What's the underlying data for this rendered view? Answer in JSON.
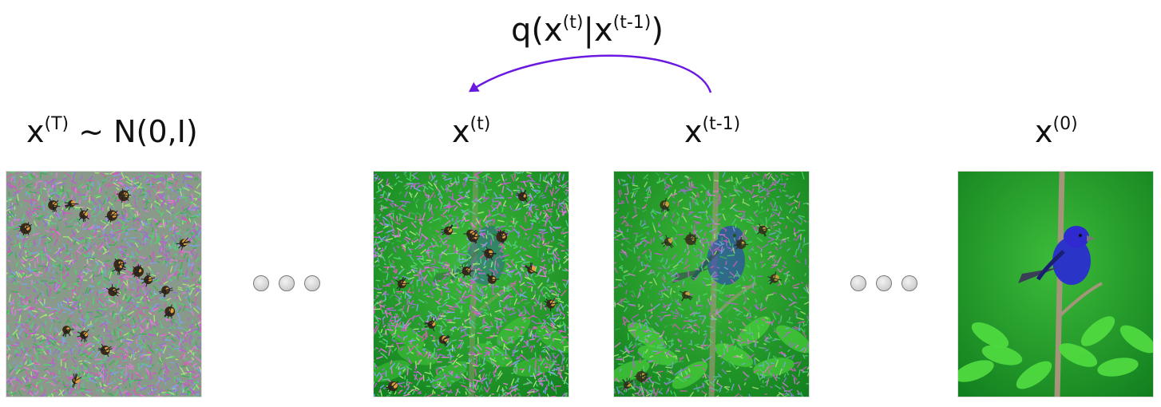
{
  "process_label": {
    "base": "q(x",
    "sup1": "(t)",
    "mid": "|x",
    "sup2": "(t-1)",
    "end": ")"
  },
  "stages": [
    {
      "base": "x",
      "sup": "(T)",
      "suffix": " ~ N(0,I)"
    },
    {
      "base": "x",
      "sup": "(t)",
      "suffix": ""
    },
    {
      "base": "x",
      "sup": "(t-1)",
      "suffix": ""
    },
    {
      "base": "x",
      "sup": "(0)",
      "suffix": ""
    }
  ],
  "images": [
    {
      "name": "pure-noise-image",
      "noise_level": 1.0
    },
    {
      "name": "noisy-bird-image-t",
      "noise_level": 0.8
    },
    {
      "name": "noisy-bird-image-t-minus-1",
      "noise_level": 0.5
    },
    {
      "name": "clean-bird-image",
      "noise_level": 0.0
    }
  ],
  "colors": {
    "arrow": "#6a1ae0",
    "text": "#111111",
    "background_green": "#1f9a2a",
    "bird_blue": "#2a35c8",
    "dot_fill": "#d8d8d8",
    "dot_stroke": "#7a7a7a"
  }
}
